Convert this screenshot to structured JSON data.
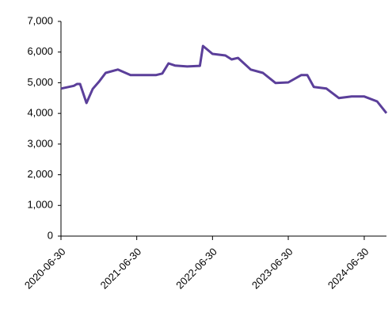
{
  "chart_data": {
    "type": "line",
    "x": [
      "2020-06-30",
      "2020-08-31",
      "2020-09-15",
      "2020-09-30",
      "2020-10-31",
      "2020-11-30",
      "2020-12-31",
      "2021-01-31",
      "2021-03-31",
      "2021-05-31",
      "2021-06-30",
      "2021-09-30",
      "2021-10-31",
      "2021-11-30",
      "2021-12-31",
      "2022-02-28",
      "2022-04-30",
      "2022-05-15",
      "2022-06-30",
      "2022-08-31",
      "2022-09-30",
      "2022-10-31",
      "2022-12-31",
      "2023-02-28",
      "2023-04-30",
      "2023-06-30",
      "2023-08-31",
      "2023-09-30",
      "2023-10-31",
      "2023-12-31",
      "2024-02-29",
      "2024-04-30",
      "2024-06-30",
      "2024-08-31",
      "2024-10-15"
    ],
    "series": [
      {
        "color": "#5b3f9a",
        "values": [
          4810,
          4900,
          4960,
          4960,
          4340,
          4800,
          5040,
          5320,
          5430,
          5250,
          5250,
          5250,
          5300,
          5630,
          5560,
          5530,
          5550,
          6200,
          5940,
          5890,
          5760,
          5810,
          5430,
          5320,
          4990,
          5010,
          5250,
          5250,
          4860,
          4810,
          4500,
          4550,
          4550,
          4390,
          4010
        ]
      }
    ],
    "xlim": [
      "2020-06-30",
      "2024-10-15"
    ],
    "xticks": [
      "2020-06-30",
      "2021-06-30",
      "2022-06-30",
      "2023-06-30",
      "2024-06-30"
    ],
    "ylim": [
      0,
      7000
    ],
    "yticks": [
      0,
      {
        "value": 1000,
        "label": "1,000"
      },
      {
        "value": 2000,
        "label": "2,000"
      },
      {
        "value": 3000,
        "label": "3,000"
      },
      {
        "value": 4000,
        "label": "4,000"
      },
      {
        "value": 5000,
        "label": "5,000"
      },
      {
        "value": 6000,
        "label": "6,000"
      },
      {
        "value": 7000,
        "label": "7,000"
      }
    ]
  }
}
